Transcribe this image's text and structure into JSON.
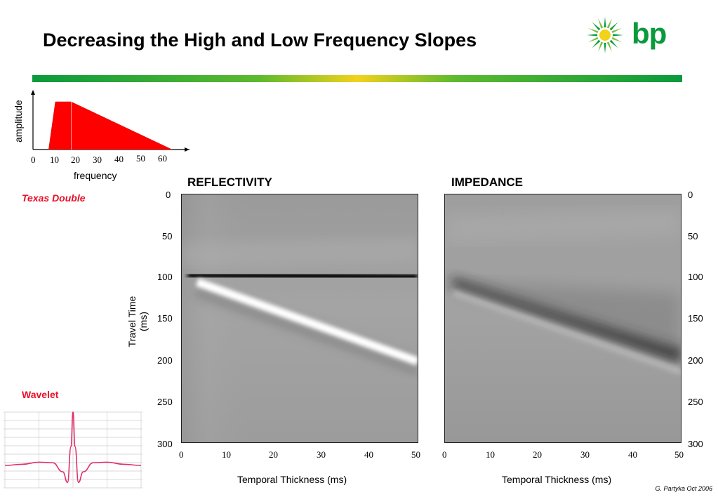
{
  "title": "Decreasing the High and Low Frequency Slopes",
  "logo": {
    "text": "bp",
    "colors": {
      "green": "#0a9a3c",
      "yellow": "#f2d21a",
      "light_green": "#7cc242"
    }
  },
  "spectrum": {
    "ylabel": "amplitude",
    "xlabel": "frequency",
    "ticks": [
      "0",
      "10",
      "20",
      "30",
      "40",
      "50",
      "60"
    ],
    "fill_color": "#ff0000"
  },
  "texas_label": "Texas Double",
  "wavelet_label": "Wavelet",
  "reflectivity": {
    "title": "REFLECTIVITY"
  },
  "impedance": {
    "title": "IMPEDANCE"
  },
  "y_axis": {
    "label": "Travel Time (ms)",
    "ticks": [
      "0",
      "50",
      "100",
      "150",
      "200",
      "250",
      "300"
    ]
  },
  "x_axis": {
    "label": "Temporal Thickness (ms)",
    "ticks": [
      "0",
      "10",
      "20",
      "30",
      "40",
      "50"
    ]
  },
  "credit": "G. Partyka Oct 2006",
  "chart_data": [
    {
      "type": "area",
      "title": "",
      "xlabel": "frequency",
      "ylabel": "amplitude",
      "x": [
        7,
        10,
        17,
        62
      ],
      "values": [
        0,
        1,
        1,
        0
      ],
      "xlim": [
        0,
        65
      ]
    },
    {
      "type": "line",
      "title": "Wavelet",
      "xlabel": "",
      "ylabel": "",
      "x": [
        0,
        25,
        50,
        70,
        85,
        92,
        97,
        100,
        103,
        108,
        115,
        130,
        150,
        175,
        200
      ],
      "values": [
        0,
        0.02,
        0.06,
        0.05,
        -0.12,
        -0.32,
        0.35,
        1,
        0.35,
        -0.32,
        -0.12,
        0.05,
        0.06,
        0.02,
        0
      ],
      "xlim": [
        0,
        200
      ]
    }
  ]
}
